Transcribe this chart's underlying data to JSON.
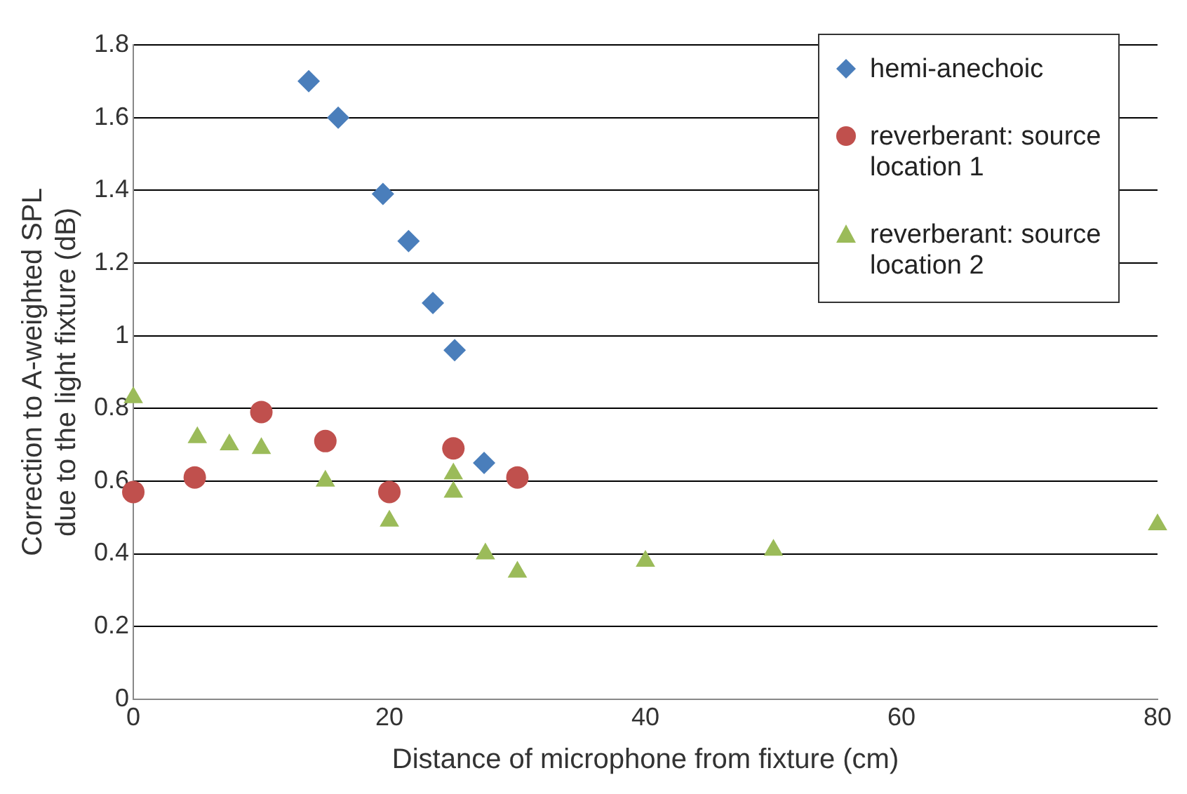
{
  "chart_data": {
    "type": "scatter",
    "xlabel": "Distance of microphone from fixture (cm)",
    "ylabel": "Correction to A-weighted SPL due to the light fixture (dB)",
    "xlim": [
      0,
      80
    ],
    "xticks": [
      0,
      20,
      40,
      60,
      80
    ],
    "ylim": [
      0,
      1.8
    ],
    "yticks": [
      0,
      0.2,
      0.4,
      0.6,
      0.8,
      1,
      1.2,
      1.4,
      1.6,
      1.8
    ],
    "grid": "y",
    "legend": "top right",
    "series": [
      {
        "name": "hemi-anechoic",
        "color": "#4a7ebb",
        "marker": "diamond",
        "x": [
          13.7,
          16,
          19.5,
          21.5,
          23.4,
          25.1,
          27.4
        ],
        "values": [
          1.7,
          1.6,
          1.39,
          1.26,
          1.09,
          0.96,
          0.65
        ]
      },
      {
        "name": "reverberant: source location 1",
        "color": "#c0504d",
        "marker": "circle",
        "x": [
          0,
          4.8,
          10,
          15,
          20,
          25,
          30
        ],
        "values": [
          0.57,
          0.61,
          0.79,
          0.71,
          0.57,
          0.69,
          0.61
        ]
      },
      {
        "name": "reverberant: source location 2",
        "color": "#9bbb59",
        "marker": "triangle",
        "x": [
          0,
          5,
          7.5,
          10,
          15,
          20,
          25,
          25,
          27.5,
          30,
          40,
          50,
          80
        ],
        "values": [
          0.83,
          0.72,
          0.7,
          0.69,
          0.6,
          0.49,
          0.62,
          0.57,
          0.4,
          0.35,
          0.38,
          0.41,
          0.48
        ]
      }
    ]
  }
}
